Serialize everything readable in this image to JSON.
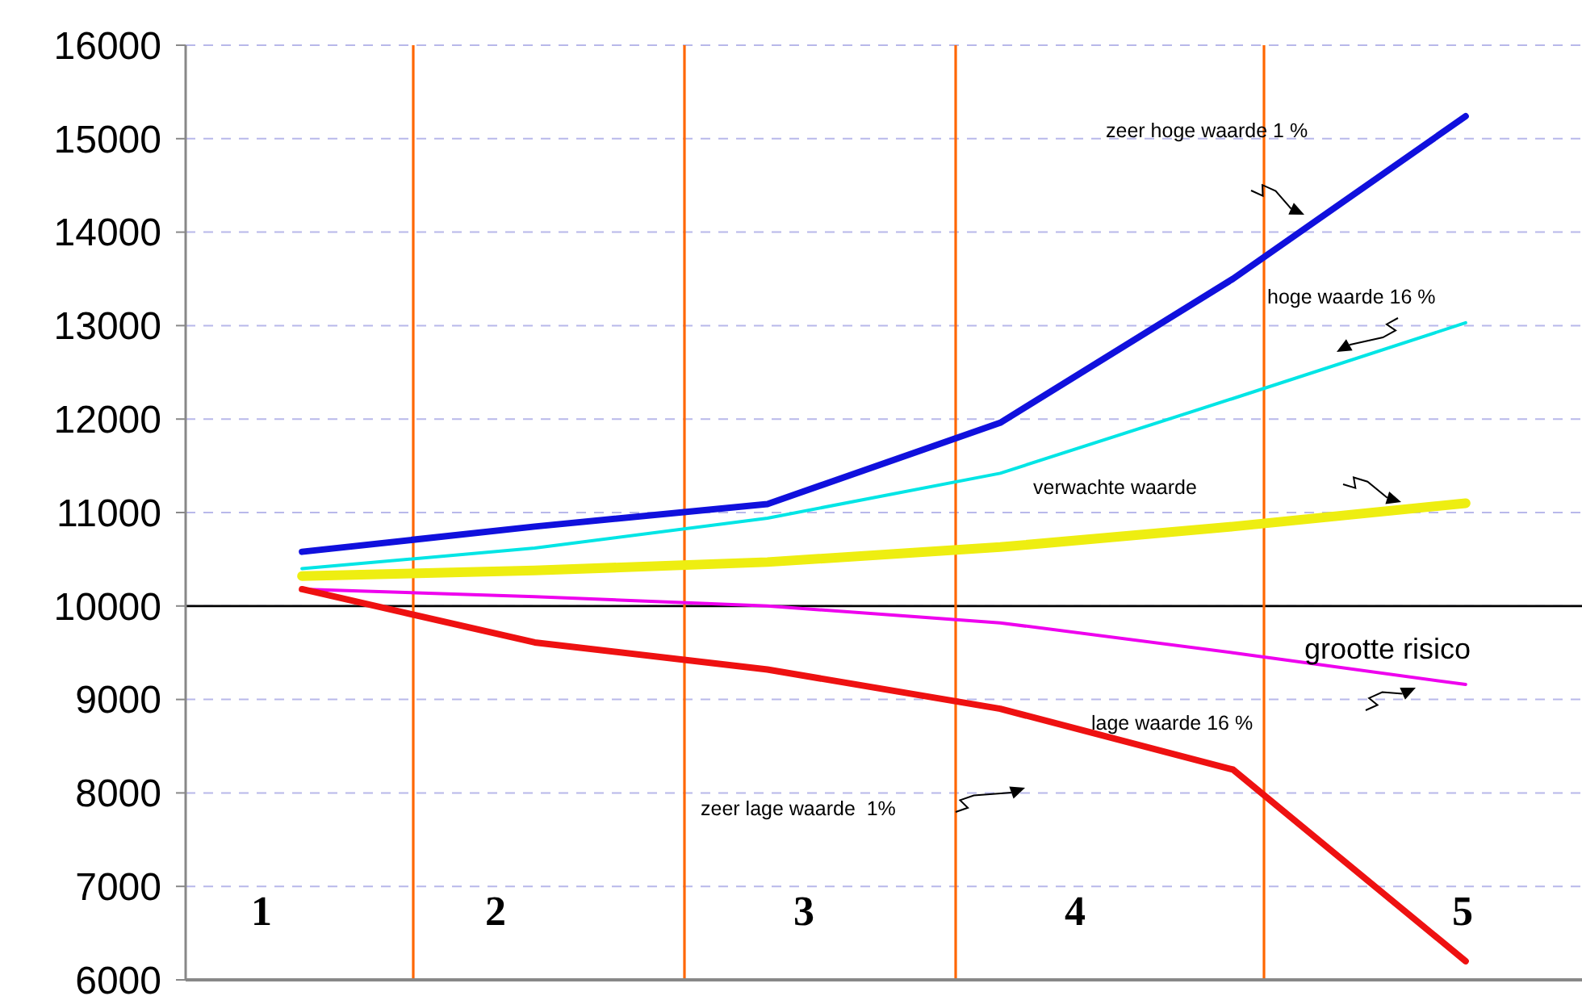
{
  "chart_data": {
    "type": "line",
    "categories": [
      null,
      null,
      null,
      null,
      null,
      null
    ],
    "ylim": [
      6000,
      16000
    ],
    "yticks": [
      6000,
      7000,
      8000,
      9000,
      10000,
      11000,
      12000,
      13000,
      14000,
      15000,
      16000
    ],
    "tick_labels": "y",
    "grid": "y",
    "marker": "none",
    "line_style": "solid",
    "series": [
      {
        "color": "#1010dd",
        "values": [
          10580,
          10850,
          11090,
          11960,
          13500,
          15240
        ]
      },
      {
        "color": "#00e5e5",
        "values": [
          10400,
          10620,
          10940,
          11420,
          12220,
          13030
        ]
      },
      {
        "color": "#eeee11",
        "values": [
          10320,
          10380,
          10470,
          10630,
          10850,
          11100
        ]
      },
      {
        "color": "#ee00ee",
        "values": [
          10180,
          10100,
          10000,
          9820,
          9500,
          9160
        ]
      },
      {
        "color": "#ee1111",
        "values": [
          10180,
          9610,
          9320,
          8900,
          8250,
          6200
        ]
      }
    ],
    "ref_lines": [
      {
        "axis": "y",
        "value": 10000,
        "color": "#000000"
      }
    ],
    "annotations": [
      "zeer hoge waarde 1 %",
      "hoge waarde 16 %",
      "verwachte waarde",
      "grootte risico",
      "lage waarde 16 %",
      "zeer lage waarde  1%",
      "1",
      "2",
      "3",
      "4",
      "5"
    ]
  }
}
